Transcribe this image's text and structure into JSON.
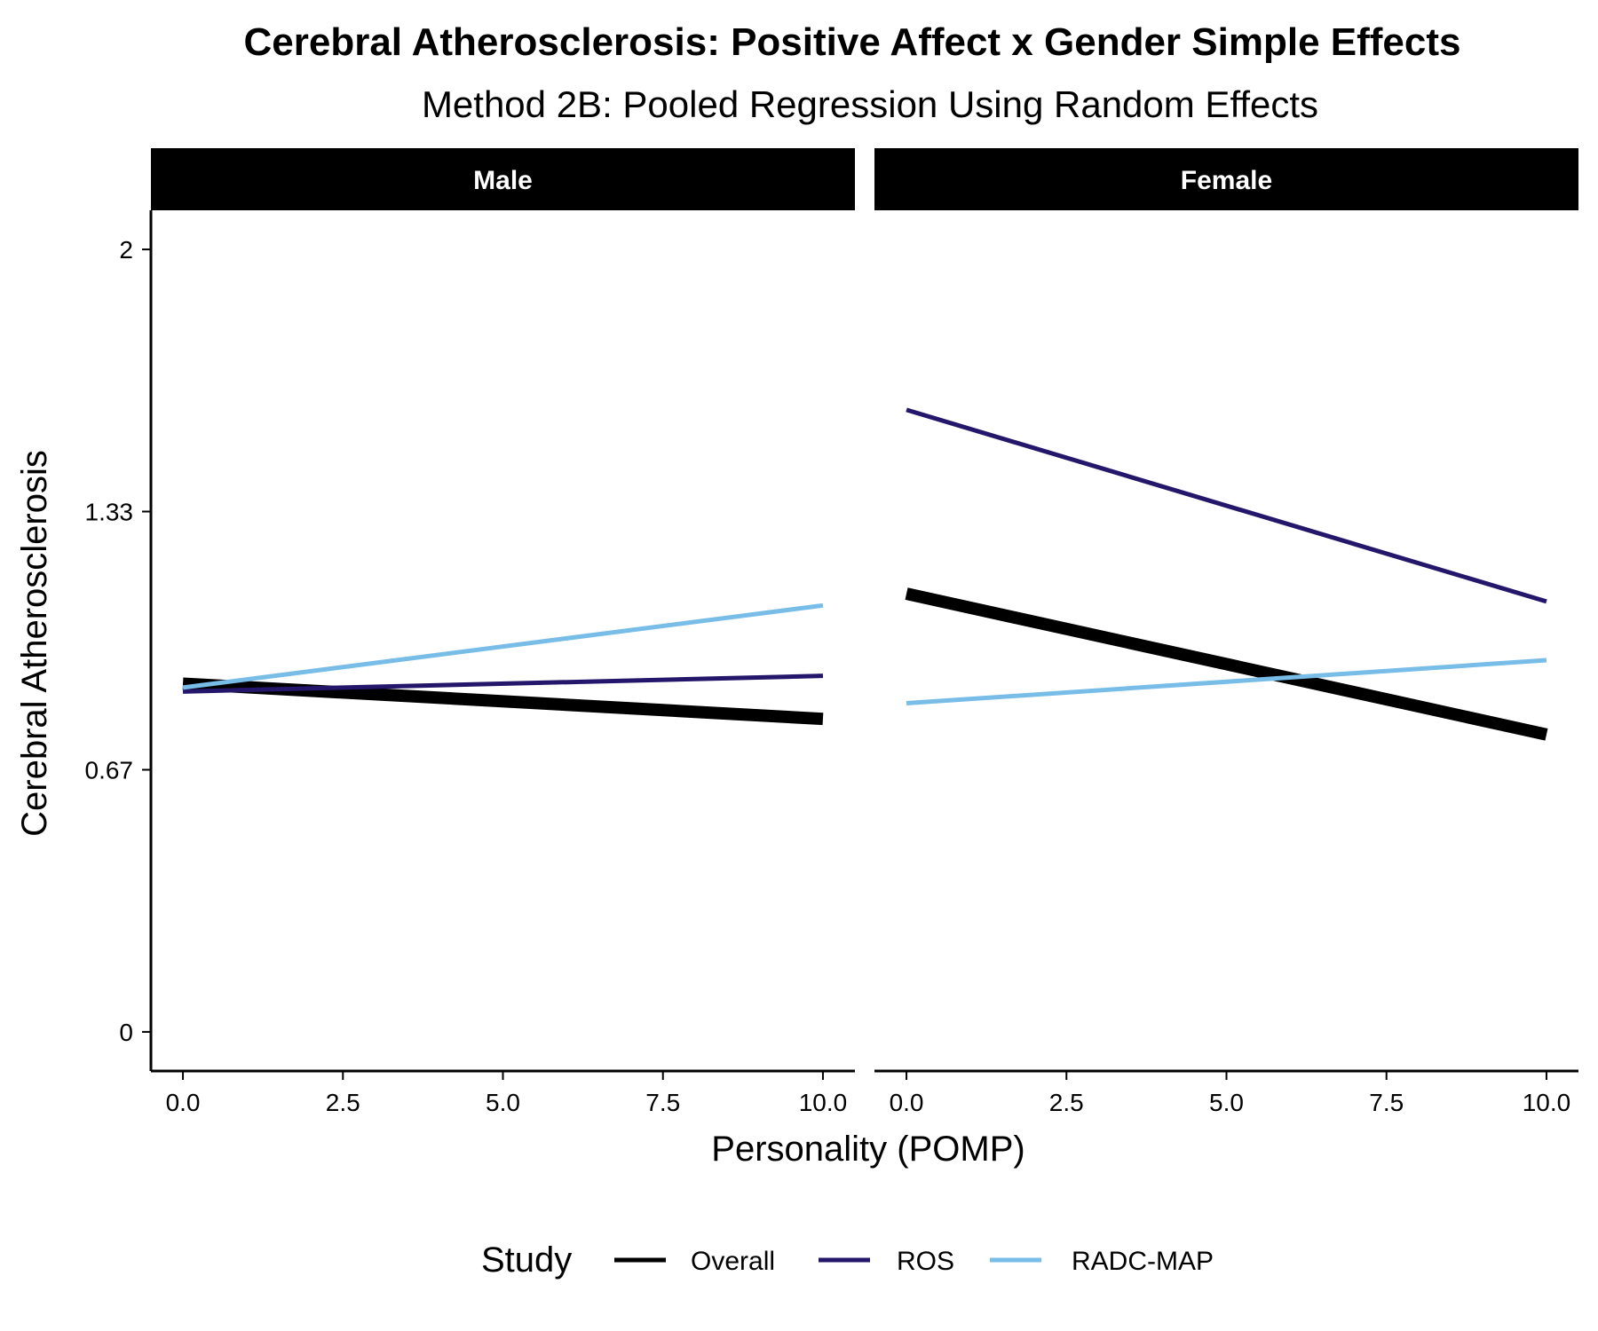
{
  "chart_data": {
    "type": "line",
    "title": "Cerebral Atherosclerosis: Positive Affect x Gender Simple Effects",
    "subtitle": "Method 2B: Pooled Regression Using Random Effects",
    "xlabel": "Personality (POMP)",
    "ylabel": "Cerebral Atherosclerosis",
    "xlim": [
      -0.5,
      10.5
    ],
    "ylim": [
      -0.1,
      2.1
    ],
    "x_ticks": [
      0.0,
      2.5,
      5.0,
      7.5,
      10.0
    ],
    "x_tick_labels": [
      "0.0",
      "2.5",
      "5.0",
      "7.5",
      "10.0"
    ],
    "y_ticks": [
      0,
      0.67,
      1.33,
      2
    ],
    "y_tick_labels": [
      "0",
      "0.67",
      "1.33",
      "2"
    ],
    "grid": false,
    "legend": {
      "title": "Study",
      "position": "bottom",
      "entries": [
        {
          "label": "Overall",
          "color": "#000000"
        },
        {
          "label": "ROS",
          "color": "#24176b"
        },
        {
          "label": "RADC-MAP",
          "color": "#78bde8"
        }
      ]
    },
    "panels": [
      {
        "label": "Male",
        "series": [
          {
            "name": "Overall",
            "color": "#000000",
            "x": [
              0,
              10
            ],
            "y": [
              0.89,
              0.8
            ]
          },
          {
            "name": "ROS",
            "color": "#24176b",
            "x": [
              0,
              10
            ],
            "y": [
              0.87,
              0.91
            ]
          },
          {
            "name": "RADC-MAP",
            "color": "#78bde8",
            "x": [
              0,
              10
            ],
            "y": [
              0.88,
              1.09
            ]
          }
        ]
      },
      {
        "label": "Female",
        "series": [
          {
            "name": "Overall",
            "color": "#000000",
            "x": [
              0,
              10
            ],
            "y": [
              1.12,
              0.76
            ]
          },
          {
            "name": "ROS",
            "color": "#24176b",
            "x": [
              0,
              10
            ],
            "y": [
              1.59,
              1.1
            ]
          },
          {
            "name": "RADC-MAP",
            "color": "#78bde8",
            "x": [
              0,
              10
            ],
            "y": [
              0.84,
              0.95
            ]
          }
        ]
      }
    ]
  }
}
